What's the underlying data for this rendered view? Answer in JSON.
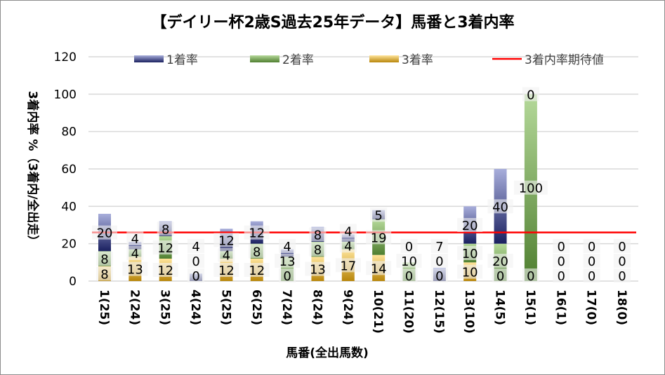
{
  "chart_data": {
    "type": "bar",
    "stacked": true,
    "title": "【デイリー杯2歳S過去25年データ】馬番と3着内率",
    "xlabel": "馬番(全出馬数)",
    "ylabel": "3着内率 %（3着内/全出走）",
    "ylim": [
      0,
      120
    ],
    "yticks": [
      0,
      20,
      40,
      60,
      80,
      100,
      120
    ],
    "grid": true,
    "legend_position": "top",
    "categories": [
      "1(25)",
      "2(24)",
      "3(25)",
      "4(24)",
      "5(25)",
      "6(25)",
      "7(24)",
      "8(24)",
      "9(24)",
      "10(21)",
      "11(20)",
      "12(15)",
      "13(10)",
      "14(5)",
      "15(1)",
      "16(1)",
      "17(0)",
      "18(0)"
    ],
    "series": [
      {
        "name": "3着率",
        "color": "#d4a020",
        "values": [
          8,
          13,
          12,
          0,
          12,
          12,
          0,
          13,
          17,
          14,
          0,
          0,
          10,
          0,
          0,
          0,
          0,
          0
        ]
      },
      {
        "name": "2着率",
        "color": "#5a8a3a",
        "values": [
          8,
          4,
          12,
          0,
          4,
          8,
          13,
          8,
          4,
          19,
          10,
          0,
          10,
          20,
          100,
          0,
          0,
          0
        ]
      },
      {
        "name": "1着率",
        "color": "#2a3580",
        "values": [
          20,
          4,
          8,
          4,
          12,
          12,
          4,
          8,
          4,
          5,
          0,
          7,
          20,
          40,
          0,
          0,
          0,
          0
        ]
      }
    ],
    "reference_line": {
      "name": "3着内率期待値",
      "value": 26,
      "color": "#ff0000"
    }
  }
}
